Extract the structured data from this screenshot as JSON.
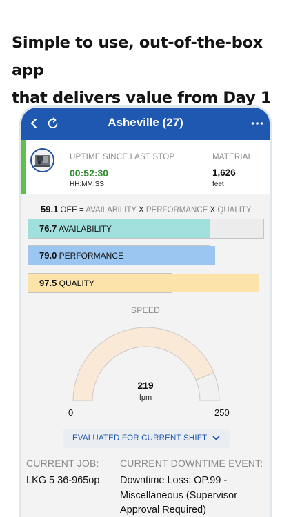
{
  "headline": {
    "line1": "Simple to use, out-of-the-box app",
    "line2": "that delivers value from Day 1"
  },
  "appbar": {
    "title": "Asheville (27)",
    "icons": [
      "back-chevron-icon",
      "refresh-icon",
      "more-dots-icon"
    ]
  },
  "status": {
    "uptime_label": "UPTIME SINCE LAST STOP",
    "uptime_value": "00:52:30",
    "uptime_unit": "HH:MM:SS",
    "material_label": "MATERIAL",
    "material_value": "1,626",
    "material_unit": "feet",
    "status_color": "#5ec24a"
  },
  "oee": {
    "value": "59.1",
    "oee_word": "OEE",
    "equals": "=",
    "availability_word": "AVAILABILITY",
    "x1": "X",
    "performance_word": "PERFORMANCE",
    "x2": "X",
    "quality_word": "QUALITY"
  },
  "metrics": [
    {
      "value": "76.7",
      "label": "AVAILABILITY",
      "percent": 76.7,
      "color": "#9fe0dc"
    },
    {
      "value": "79.0",
      "label": "PERFORMANCE",
      "percent": 79.0,
      "color": "#9cc6f2"
    },
    {
      "value": "97.5",
      "label": "QUALITY",
      "percent": 97.5,
      "color": "#fbe3a9"
    }
  ],
  "speed": {
    "label": "SPEED",
    "value": "219",
    "unit": "fpm",
    "min": "0",
    "max": "250",
    "current": 219,
    "range": [
      0,
      250
    ]
  },
  "shift_selector": {
    "label": "EVALUATED FOR CURRENT SHIFT"
  },
  "job": {
    "current_job_label": "CURRENT JOB:",
    "current_job_value": "LKG 5 36-965op",
    "downtime_label": "CURRENT DOWNTIME EVENT:",
    "downtime_line1": "Downtime Loss: OP.99 -",
    "downtime_line2": "Miscellaneous (Supervisor",
    "downtime_line3": "Approval Required)"
  }
}
